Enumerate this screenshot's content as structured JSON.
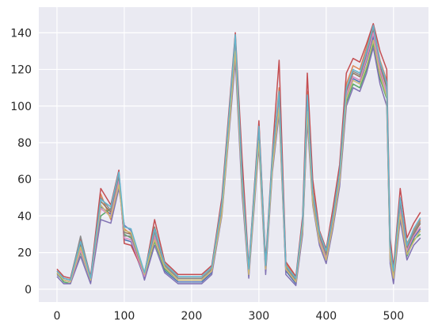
{
  "chart_data": {
    "type": "line",
    "title": "",
    "xlabel": "",
    "ylabel": "",
    "xlim": [
      -27,
      552
    ],
    "ylim": [
      -7,
      154
    ],
    "x_ticks": [
      0,
      100,
      200,
      300,
      400,
      500
    ],
    "y_ticks": [
      0,
      20,
      40,
      60,
      80,
      100,
      120,
      140
    ],
    "x_tick_labels": [
      "0",
      "100",
      "200",
      "300",
      "400",
      "500"
    ],
    "y_tick_labels": [
      "0",
      "20",
      "40",
      "60",
      "80",
      "100",
      "120",
      "140"
    ],
    "grid": true,
    "background_color": "#eaeaf2",
    "grid_color": "#ffffff",
    "palette": [
      "#4c72b0",
      "#dd8452",
      "#55a868",
      "#c44e52",
      "#8172b3",
      "#937860",
      "#da8bc3",
      "#8c8c8c",
      "#ccb974",
      "#64b5cd"
    ],
    "envelope": {
      "x": [
        0,
        20,
        35,
        50,
        60,
        75,
        90,
        100,
        110,
        130,
        145,
        160,
        180,
        200,
        220,
        235,
        245,
        255,
        265,
        275,
        285,
        300,
        310,
        320,
        330,
        340,
        350,
        360,
        370,
        380,
        390,
        400,
        410,
        420,
        430,
        440,
        450,
        460,
        470,
        480,
        490,
        495,
        500,
        510,
        520,
        530,
        540
      ],
      "y": [
        9,
        5,
        22,
        6,
        42,
        40,
        60,
        30,
        28,
        8,
        30,
        12,
        6,
        6,
        6,
        10,
        45,
        90,
        135,
        60,
        10,
        85,
        12,
        70,
        105,
        12,
        5,
        35,
        100,
        52,
        28,
        18,
        38,
        62,
        108,
        118,
        116,
        128,
        140,
        120,
        110,
        20,
        8,
        45,
        22,
        30,
        35
      ]
    },
    "series": [
      {
        "values": [
          8,
          5,
          4,
          25,
          4,
          45,
          41,
          60,
          27,
          26,
          6,
          28,
          10,
          4,
          4,
          4,
          9,
          43,
          88,
          138,
          58,
          8,
          83,
          10,
          67,
          102,
          10,
          3,
          33,
          102,
          50,
          26,
          16,
          36,
          60,
          105,
          115,
          113,
          125,
          138,
          118,
          108,
          18,
          6,
          43,
          20,
          28,
          33
        ]
      },
      {
        "values": [
          10,
          6,
          5,
          22,
          6,
          52,
          38,
          58,
          33,
          30,
          9,
          32,
          14,
          7,
          7,
          7,
          12,
          48,
          93,
          132,
          63,
          11,
          90,
          14,
          72,
          110,
          14,
          6,
          38,
          108,
          55,
          30,
          20,
          41,
          65,
          112,
          122,
          120,
          132,
          144,
          125,
          114,
          24,
          11,
          48,
          25,
          32,
          38
        ]
      },
      {
        "values": [
          9,
          4,
          3,
          20,
          5,
          40,
          44,
          63,
          30,
          28,
          7,
          26,
          11,
          5,
          5,
          5,
          10,
          42,
          85,
          128,
          55,
          9,
          80,
          11,
          68,
          98,
          11,
          4,
          32,
          95,
          48,
          27,
          17,
          35,
          58,
          102,
          112,
          110,
          120,
          134,
          115,
          104,
          16,
          5,
          40,
          18,
          27,
          30
        ]
      },
      {
        "values": [
          11,
          7,
          6,
          28,
          7,
          55,
          46,
          65,
          25,
          24,
          8,
          38,
          15,
          8,
          8,
          8,
          13,
          50,
          95,
          140,
          72,
          12,
          92,
          15,
          75,
          125,
          15,
          7,
          40,
          118,
          60,
          32,
          22,
          44,
          68,
          118,
          126,
          124,
          134,
          145,
          130,
          120,
          28,
          12,
          55,
          28,
          36,
          42
        ]
      },
      {
        "values": [
          7,
          3,
          3,
          18,
          3,
          38,
          36,
          55,
          35,
          32,
          5,
          24,
          9,
          3,
          3,
          3,
          8,
          40,
          82,
          125,
          52,
          6,
          78,
          8,
          64,
          96,
          8,
          2,
          30,
          92,
          46,
          24,
          14,
          33,
          56,
          100,
          110,
          108,
          118,
          132,
          112,
          100,
          14,
          3,
          38,
          16,
          24,
          28
        ]
      },
      {
        "values": [
          9,
          6,
          5,
          24,
          6,
          48,
          42,
          61,
          31,
          30,
          9,
          34,
          13,
          6,
          6,
          6,
          11,
          46,
          90,
          136,
          60,
          10,
          86,
          12,
          70,
          104,
          12,
          5,
          36,
          104,
          52,
          28,
          18,
          38,
          62,
          108,
          118,
          116,
          128,
          142,
          122,
          110,
          20,
          8,
          46,
          22,
          30,
          36
        ]
      },
      {
        "values": [
          10,
          5,
          4,
          21,
          5,
          44,
          40,
          59,
          28,
          27,
          7,
          29,
          12,
          5,
          5,
          5,
          10,
          44,
          87,
          134,
          57,
          9,
          84,
          11,
          69,
          101,
          11,
          4,
          34,
          100,
          49,
          27,
          17,
          37,
          61,
          106,
          116,
          114,
          126,
          140,
          120,
          107,
          19,
          7,
          44,
          21,
          29,
          34
        ]
      },
      {
        "values": [
          8,
          6,
          5,
          29,
          6,
          50,
          43,
          62,
          29,
          29,
          8,
          31,
          13,
          6,
          6,
          6,
          11,
          45,
          89,
          137,
          59,
          10,
          87,
          12,
          71,
          106,
          12,
          5,
          35,
          103,
          51,
          29,
          19,
          39,
          63,
          109,
          119,
          117,
          129,
          143,
          123,
          112,
          21,
          9,
          47,
          23,
          31,
          37
        ]
      },
      {
        "values": [
          9,
          5,
          4,
          23,
          5,
          46,
          39,
          57,
          32,
          31,
          8,
          27,
          12,
          5,
          5,
          5,
          10,
          41,
          84,
          130,
          56,
          8,
          81,
          11,
          66,
          99,
          11,
          4,
          33,
          97,
          47,
          26,
          16,
          35,
          59,
          104,
          114,
          112,
          122,
          136,
          117,
          105,
          17,
          6,
          41,
          19,
          26,
          32
        ]
      },
      {
        "values": [
          10,
          6,
          5,
          26,
          6,
          49,
          45,
          64,
          34,
          33,
          9,
          33,
          14,
          7,
          7,
          7,
          12,
          47,
          92,
          139,
          62,
          11,
          89,
          13,
          73,
          108,
          13,
          6,
          37,
          106,
          53,
          31,
          21,
          40,
          64,
          110,
          120,
          118,
          130,
          144,
          124,
          113,
          23,
          10,
          50,
          24,
          33,
          39
        ]
      }
    ],
    "series_x": [
      0,
      10,
      20,
      35,
      50,
      65,
      80,
      92,
      100,
      110,
      130,
      145,
      160,
      180,
      200,
      215,
      230,
      245,
      255,
      265,
      275,
      285,
      300,
      310,
      320,
      330,
      340,
      355,
      365,
      372,
      380,
      390,
      400,
      410,
      420,
      430,
      440,
      450,
      460,
      470,
      480,
      490,
      495,
      500,
      510,
      520,
      530,
      540
    ]
  }
}
